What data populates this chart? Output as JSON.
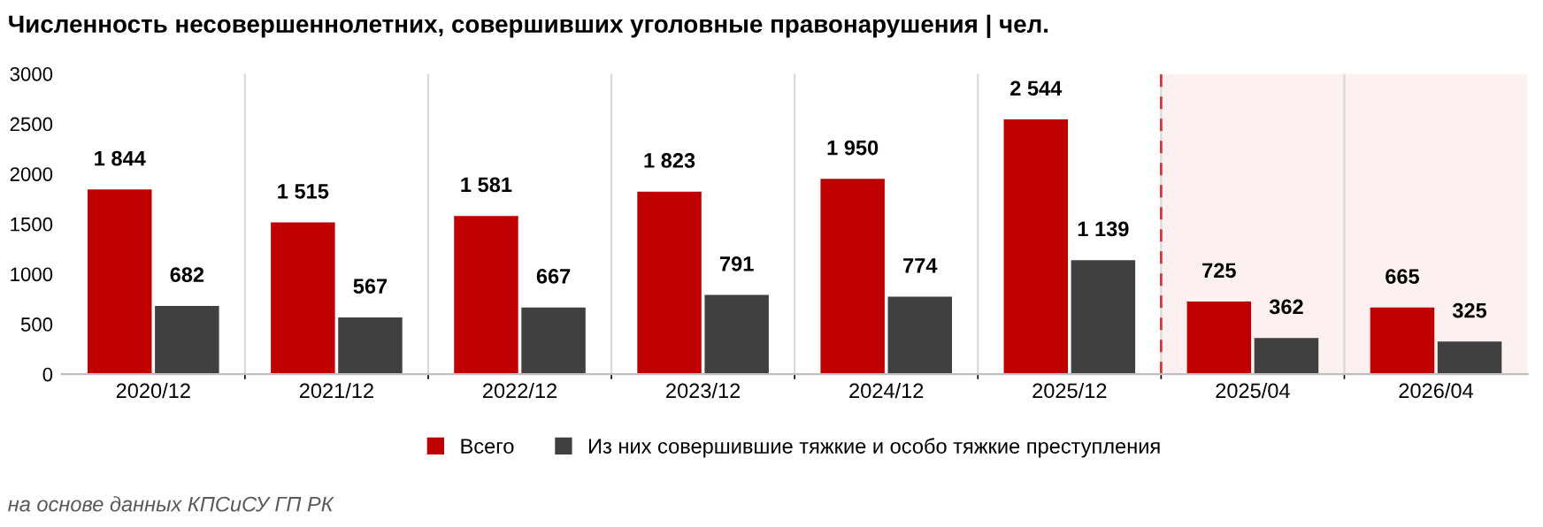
{
  "chart_data": {
    "type": "bar",
    "title": "Численность несовершеннолетних, совершивших уголовные правонарушения | чел.",
    "categories": [
      "2020/12",
      "2021/12",
      "2022/12",
      "2023/12",
      "2024/12",
      "2025/12",
      "2025/04",
      "2026/04"
    ],
    "series": [
      {
        "name": "Всего",
        "color": "#c00000",
        "values": [
          1844,
          1515,
          1581,
          1823,
          1950,
          2544,
          725,
          665
        ],
        "value_labels": [
          "1 844",
          "1 515",
          "1 581",
          "1 823",
          "1 950",
          "2 544",
          "725",
          "665"
        ]
      },
      {
        "name": "Из них совершившие тяжкие и особо тяжкие преступления",
        "color": "#404040",
        "values": [
          682,
          567,
          667,
          791,
          774,
          1139,
          362,
          325
        ],
        "value_labels": [
          "682",
          "567",
          "667",
          "791",
          "774",
          "1 139",
          "362",
          "325"
        ]
      }
    ],
    "ylim": [
      0,
      3000
    ],
    "yticks": [
      0,
      500,
      1000,
      1500,
      2000,
      2500,
      3000
    ],
    "grid": "x",
    "legend": "bottom",
    "bands": [
      {
        "axis": "x",
        "from": "2025/04",
        "to": "2026/04",
        "color": "#fdf0f0"
      }
    ],
    "ref_lines": [
      {
        "axis": "x",
        "value": "2025/04",
        "color": "#e03030",
        "line_style": "dashed"
      }
    ],
    "annotations": [
      "на основе данных КПСиСУ ГП РК"
    ]
  }
}
